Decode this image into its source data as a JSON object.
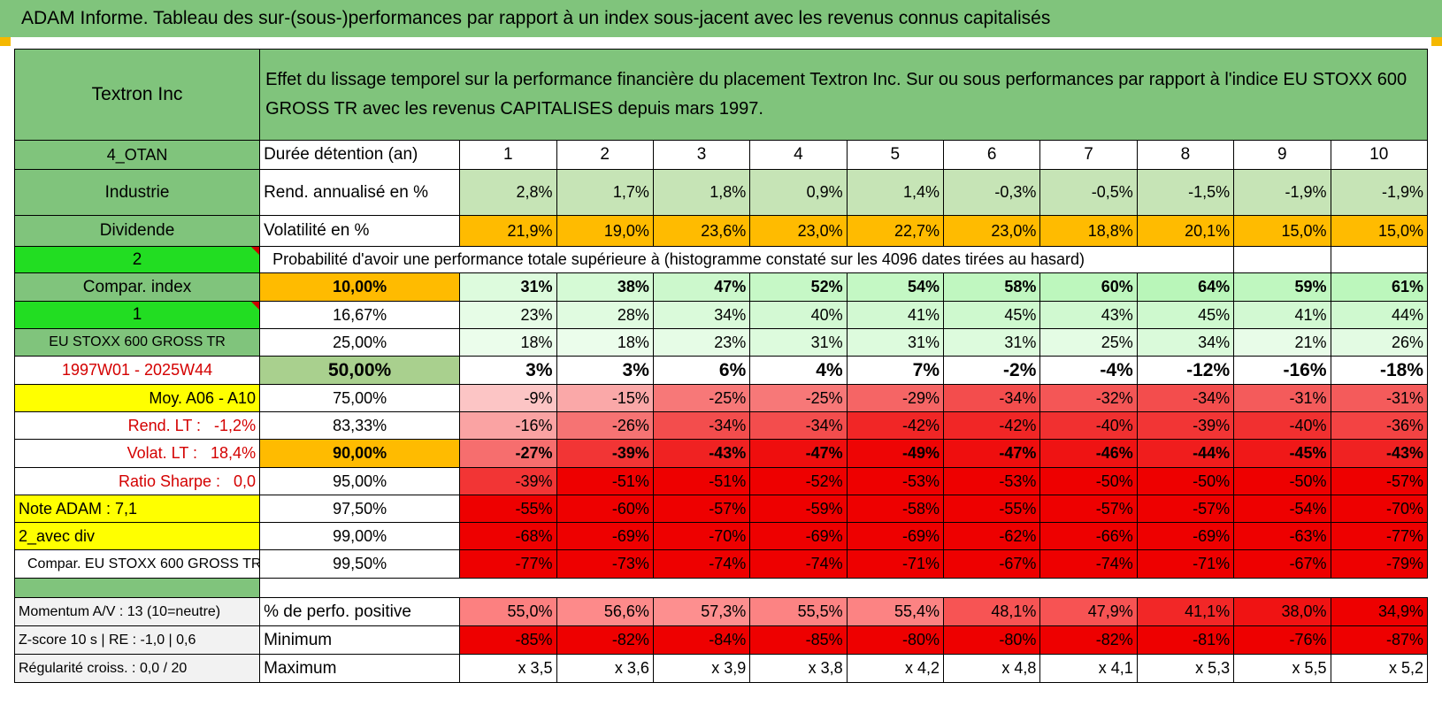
{
  "header": {
    "title": "ADAM Informe. Tableau des sur-(sous-)performances par rapport à un index sous-jacent avec les revenus connus capitalisés"
  },
  "company": {
    "name": "Textron Inc",
    "description": "Effet du lissage temporel sur la performance financière du placement Textron Inc. Sur ou sous performances par rapport à l'indice EU STOXX 600 GROSS TR avec les revenus CAPITALISES depuis mars 1997."
  },
  "info": {
    "group": "4_OTAN",
    "sector": "Industrie",
    "div_label": "Dividende",
    "level2": "2",
    "compar_index": "Compar. index",
    "level1": "1",
    "index_name": "EU STOXX 600 GROSS TR",
    "period": "1997W01 - 2025W44",
    "moy": "Moy. A06 - A10",
    "rend_lt_label": "Rend. LT :",
    "rend_lt_value": "-1,2%",
    "volat_lt_label": "Volat. LT :",
    "volat_lt_value": "18,4%",
    "sharpe_label": "Ratio Sharpe :",
    "sharpe_value": "0,0",
    "note": "Note ADAM : 7,1",
    "avec_div": "2_avec div",
    "compar_full": "Compar. EU STOXX 600 GROSS TR"
  },
  "labels": {
    "duree": "Durée détention (an)",
    "rend": "Rend. annualisé en %",
    "vol": "Volatilité en %",
    "prob": "Probabilité d'avoir une performance totale supérieure à (histogramme constaté sur les 4096 dates tirées au hasard)"
  },
  "years": [
    "1",
    "2",
    "3",
    "4",
    "5",
    "6",
    "7",
    "8",
    "9",
    "10"
  ],
  "rend": [
    "2,8%",
    "1,7%",
    "1,8%",
    "0,9%",
    "1,4%",
    "-0,3%",
    "-0,5%",
    "-1,5%",
    "-1,9%",
    "-1,9%"
  ],
  "vol": [
    "21,9%",
    "19,0%",
    "23,6%",
    "23,0%",
    "22,7%",
    "23,0%",
    "18,8%",
    "20,1%",
    "15,0%",
    "15,0%"
  ],
  "prob_rows": [
    {
      "pct": "10,00%",
      "values": [
        "31%",
        "38%",
        "47%",
        "52%",
        "54%",
        "58%",
        "60%",
        "64%",
        "59%",
        "61%"
      ]
    },
    {
      "pct": "16,67%",
      "values": [
        "23%",
        "28%",
        "34%",
        "40%",
        "41%",
        "45%",
        "43%",
        "45%",
        "41%",
        "44%"
      ]
    },
    {
      "pct": "25,00%",
      "values": [
        "18%",
        "18%",
        "23%",
        "31%",
        "31%",
        "31%",
        "25%",
        "34%",
        "21%",
        "26%"
      ]
    },
    {
      "pct": "50,00%",
      "values": [
        "3%",
        "3%",
        "6%",
        "4%",
        "7%",
        "-2%",
        "-4%",
        "-12%",
        "-16%",
        "-18%"
      ]
    },
    {
      "pct": "75,00%",
      "values": [
        "-9%",
        "-15%",
        "-25%",
        "-25%",
        "-29%",
        "-34%",
        "-32%",
        "-34%",
        "-31%",
        "-31%"
      ]
    },
    {
      "pct": "83,33%",
      "values": [
        "-16%",
        "-26%",
        "-34%",
        "-34%",
        "-42%",
        "-42%",
        "-40%",
        "-39%",
        "-40%",
        "-36%"
      ]
    },
    {
      "pct": "90,00%",
      "values": [
        "-27%",
        "-39%",
        "-43%",
        "-47%",
        "-49%",
        "-47%",
        "-46%",
        "-44%",
        "-45%",
        "-43%"
      ]
    },
    {
      "pct": "95,00%",
      "values": [
        "-39%",
        "-51%",
        "-51%",
        "-52%",
        "-53%",
        "-53%",
        "-50%",
        "-50%",
        "-50%",
        "-57%"
      ]
    },
    {
      "pct": "97,50%",
      "values": [
        "-55%",
        "-60%",
        "-57%",
        "-59%",
        "-58%",
        "-55%",
        "-57%",
        "-57%",
        "-54%",
        "-70%"
      ]
    },
    {
      "pct": "99,00%",
      "values": [
        "-68%",
        "-69%",
        "-70%",
        "-69%",
        "-69%",
        "-62%",
        "-66%",
        "-69%",
        "-63%",
        "-77%"
      ]
    },
    {
      "pct": "99,50%",
      "values": [
        "-77%",
        "-73%",
        "-74%",
        "-74%",
        "-71%",
        "-67%",
        "-74%",
        "-71%",
        "-67%",
        "-79%"
      ]
    }
  ],
  "bottom": {
    "momentum": "Momentum A/V : 13 (10=neutre)",
    "zscore": "Z-score 10 s | RE : -1,0 | 0,6",
    "regularite": "Régularité croiss. : 0,0 / 20",
    "pos_label": "% de perfo. positive",
    "min_label": "Minimum",
    "max_label": "Maximum",
    "pos": [
      "55,0%",
      "56,6%",
      "57,3%",
      "55,5%",
      "55,4%",
      "48,1%",
      "47,9%",
      "41,1%",
      "38,0%",
      "34,9%"
    ],
    "min": [
      "-85%",
      "-82%",
      "-84%",
      "-85%",
      "-80%",
      "-80%",
      "-82%",
      "-81%",
      "-76%",
      "-87%"
    ],
    "max": [
      "x 3,5",
      "x 3,6",
      "x 3,9",
      "x 3,8",
      "x 4,2",
      "x 4,8",
      "x 4,1",
      "x 5,3",
      "x 5,5",
      "x 5,2"
    ]
  },
  "colors": {
    "header_green": "#80c47c",
    "lime": "#22dd22",
    "yellow": "#ffff00",
    "orange": "#ffbb00",
    "light_green": "#c6e4b6",
    "red": "#ee0000"
  }
}
